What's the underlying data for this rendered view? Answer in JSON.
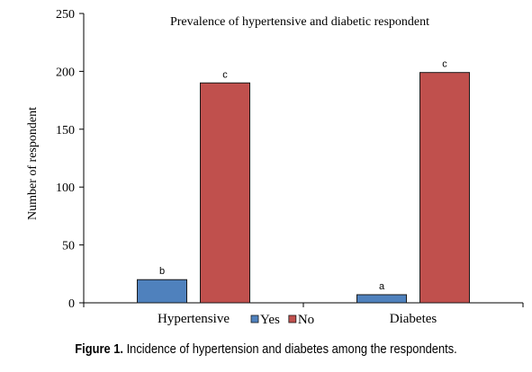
{
  "chart_data": {
    "type": "bar",
    "title": "Prevalence of hypertensive and diabetic respondent",
    "ylabel": "Number of respondent",
    "xlabel": "",
    "categories": [
      "Hypertensive",
      "Diabetes"
    ],
    "ylim": [
      0,
      250
    ],
    "yticks": [
      0,
      50,
      100,
      150,
      200,
      250
    ],
    "series": [
      {
        "name": "Yes",
        "color": "#4f81bd",
        "values": [
          20,
          7
        ],
        "labels": [
          "b",
          "a"
        ]
      },
      {
        "name": "No",
        "color": "#c0504d",
        "values": [
          190,
          199
        ],
        "labels": [
          "c",
          "c"
        ]
      }
    ],
    "legend": "bottom-center",
    "grid": false
  },
  "caption": {
    "label": "Figure 1.",
    "text": " Incidence of hypertension and diabetes among the respondents."
  }
}
